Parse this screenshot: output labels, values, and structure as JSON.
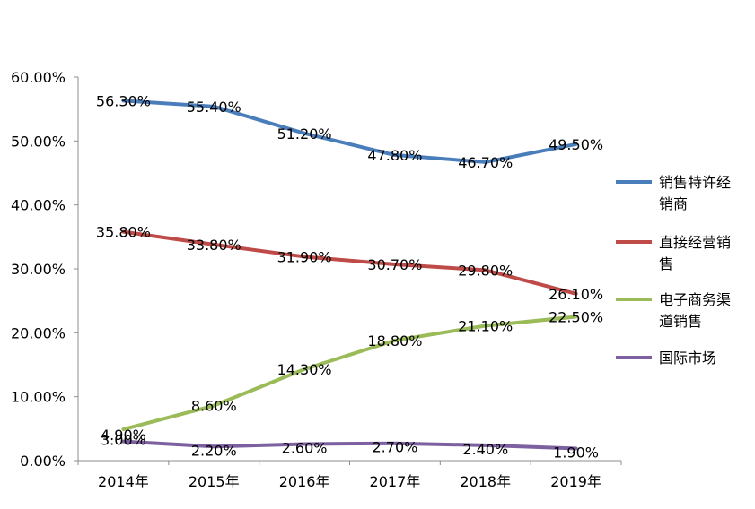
{
  "chart_data": {
    "type": "line",
    "title": "",
    "xlabel": "",
    "ylabel": "",
    "categories": [
      "2014年",
      "2015年",
      "2016年",
      "2017年",
      "2018年",
      "2019年"
    ],
    "ylim": [
      0,
      60
    ],
    "y_ticks": [
      "0.00%",
      "10.00%",
      "20.00%",
      "30.00%",
      "40.00%",
      "50.00%",
      "60.00%"
    ],
    "grid": false,
    "legend_position": "right",
    "series": [
      {
        "name": "销售特许经销商",
        "legend_lines": [
          "销售特许经",
          "销商"
        ],
        "color": "#4a7ebb",
        "values": [
          56.3,
          55.4,
          51.2,
          47.8,
          46.7,
          49.5
        ],
        "labels": [
          "56.30%",
          "55.40%",
          "51.20%",
          "47.80%",
          "46.70%",
          "49.50%"
        ]
      },
      {
        "name": "直接经营销售",
        "legend_lines": [
          "直接经营销",
          "售"
        ],
        "color": "#be4b48",
        "values": [
          35.8,
          33.8,
          31.9,
          30.7,
          29.8,
          26.1
        ],
        "labels": [
          "35.80%",
          "33.80%",
          "31.90%",
          "30.70%",
          "29.80%",
          "26.10%"
        ]
      },
      {
        "name": "电子商务渠道销售",
        "legend_lines": [
          "电子商务渠",
          "道销售"
        ],
        "color": "#9bbb59",
        "values": [
          4.9,
          8.6,
          14.3,
          18.8,
          21.1,
          22.5
        ],
        "labels": [
          "4.90%",
          "8.60%",
          "14.30%",
          "18.80%",
          "21.10%",
          "22.50%"
        ]
      },
      {
        "name": "国际市场",
        "legend_lines": [
          "国际市场"
        ],
        "color": "#7d60a0",
        "values": [
          3.0,
          2.2,
          2.6,
          2.7,
          2.4,
          1.9
        ],
        "labels": [
          "3.00%",
          "2.20%",
          "2.60%",
          "2.70%",
          "2.40%",
          "1.90%"
        ]
      }
    ]
  }
}
